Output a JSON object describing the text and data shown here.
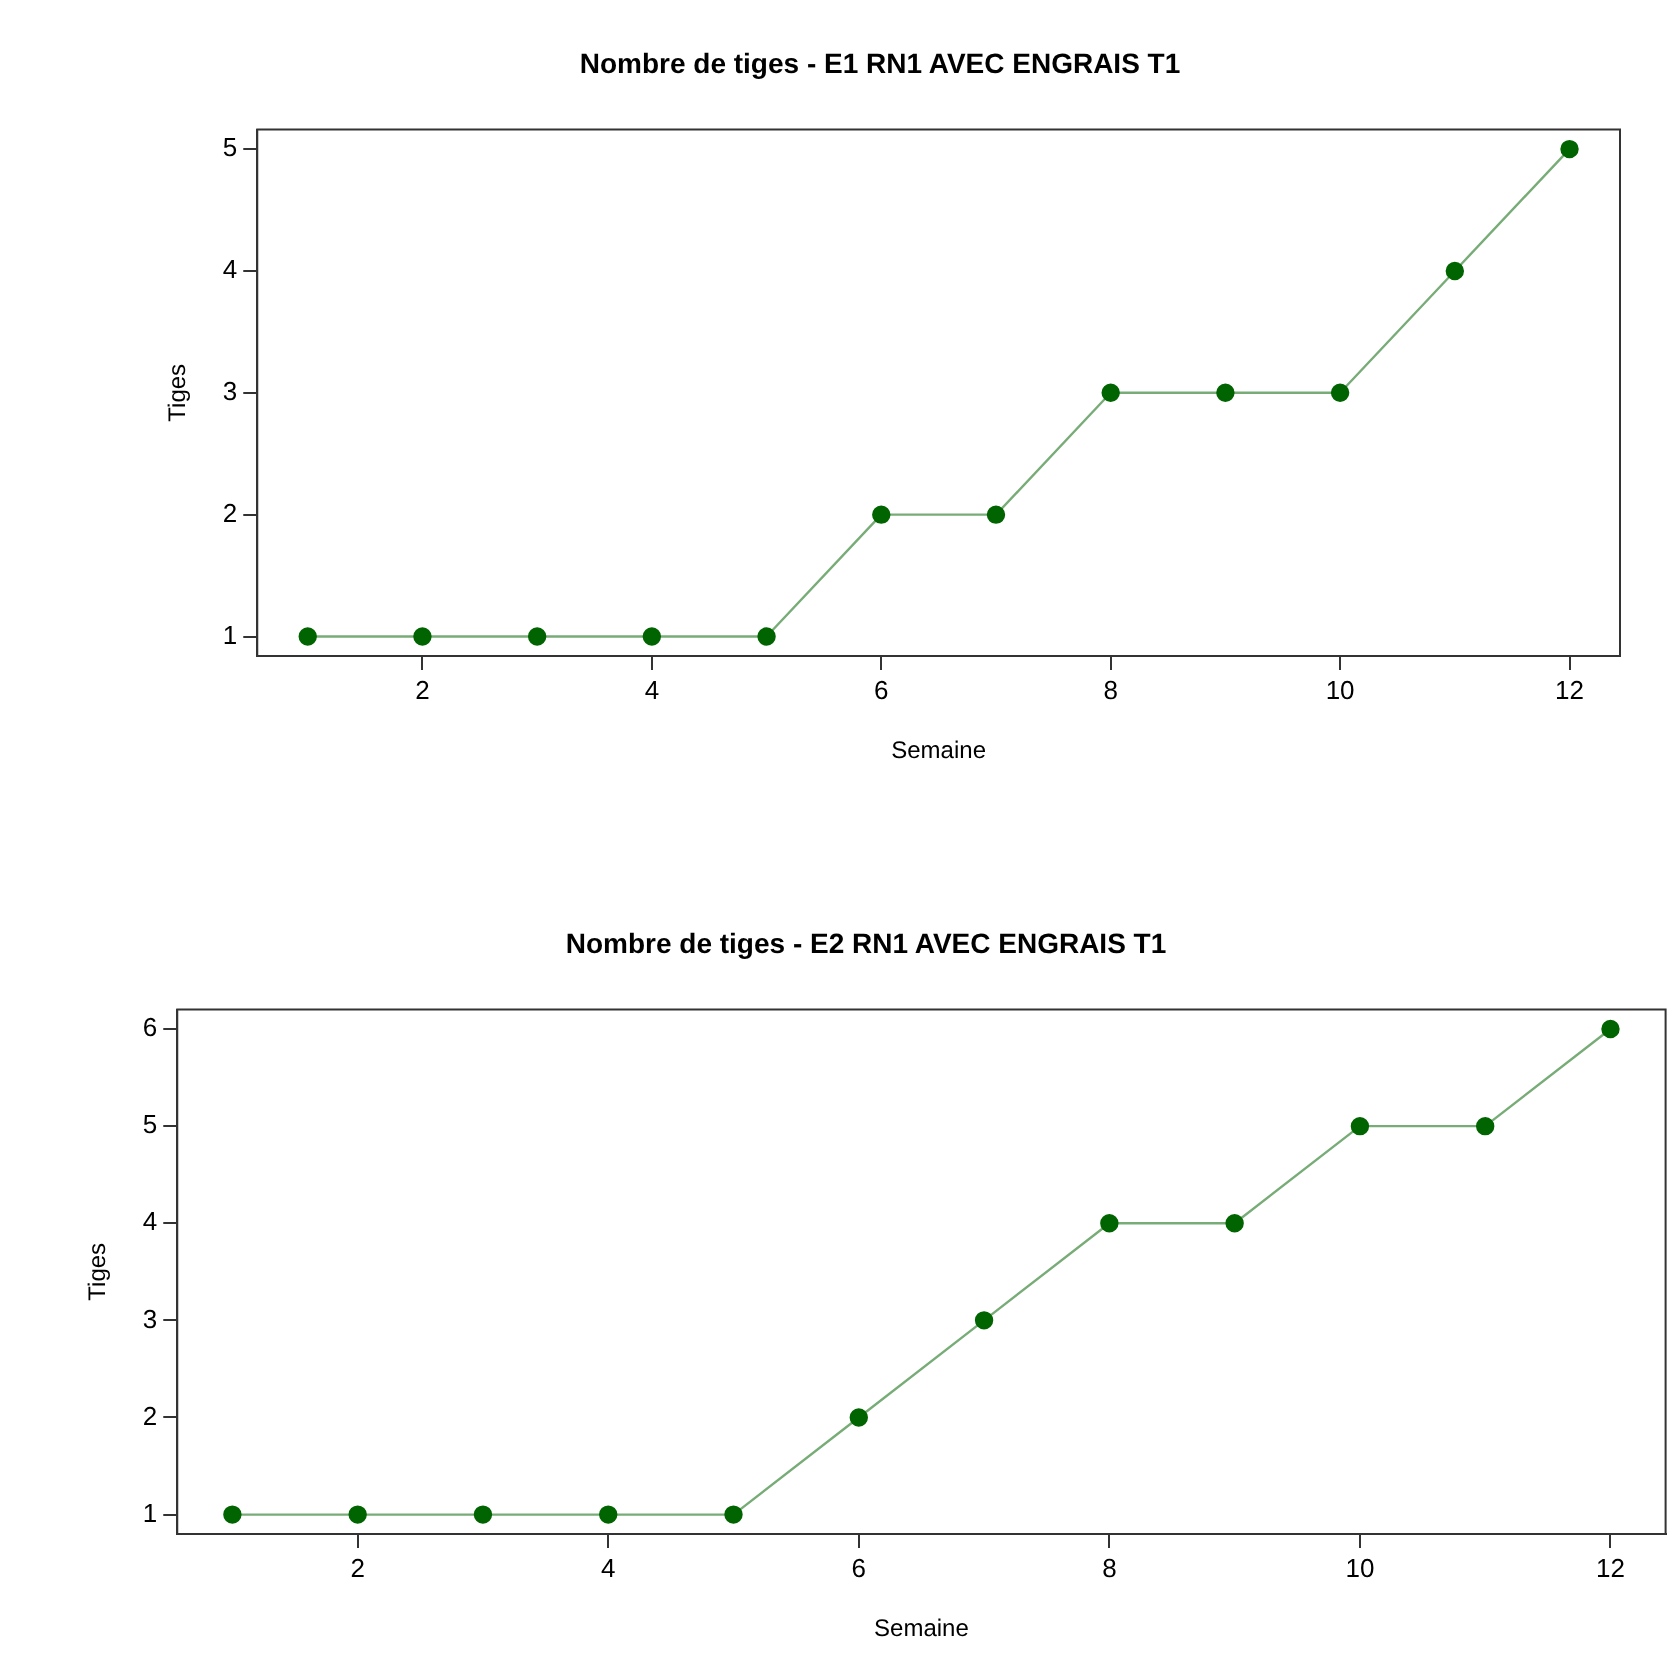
{
  "chart_data": [
    {
      "type": "line",
      "title": "Nombre de tiges - E1 RN1 AVEC ENGRAIS T1",
      "xlabel": "Semaine",
      "ylabel": "Tiges",
      "x": [
        1,
        2,
        3,
        4,
        5,
        6,
        7,
        8,
        9,
        10,
        11,
        12
      ],
      "series": [
        {
          "color": "#006400",
          "values": [
            1,
            1,
            1,
            1,
            1,
            2,
            2,
            3,
            3,
            3,
            4,
            5
          ]
        }
      ],
      "xlim": [
        0.56,
        12.44
      ],
      "ylim": [
        0.84,
        5.16
      ],
      "xticks": [
        2,
        4,
        6,
        8,
        10,
        12
      ],
      "yticks": [
        1,
        2,
        3,
        4,
        5
      ],
      "marker": "circle",
      "grid": false,
      "legend": false
    },
    {
      "type": "line",
      "title": "Nombre de tiges - E2 RN1 AVEC ENGRAIS T1",
      "xlabel": "Semaine",
      "ylabel": "Tiges",
      "x": [
        1,
        2,
        3,
        4,
        5,
        6,
        7,
        8,
        9,
        10,
        11,
        12
      ],
      "series": [
        {
          "color": "#006400",
          "values": [
            1,
            1,
            1,
            1,
            1,
            2,
            3,
            4,
            4,
            5,
            5,
            6
          ]
        }
      ],
      "xlim": [
        0.56,
        12.44
      ],
      "ylim": [
        0.8,
        6.2
      ],
      "xticks": [
        2,
        4,
        6,
        8,
        10,
        12
      ],
      "yticks": [
        1,
        2,
        3,
        4,
        5,
        6
      ],
      "marker": "circle",
      "grid": false,
      "legend": false
    }
  ]
}
